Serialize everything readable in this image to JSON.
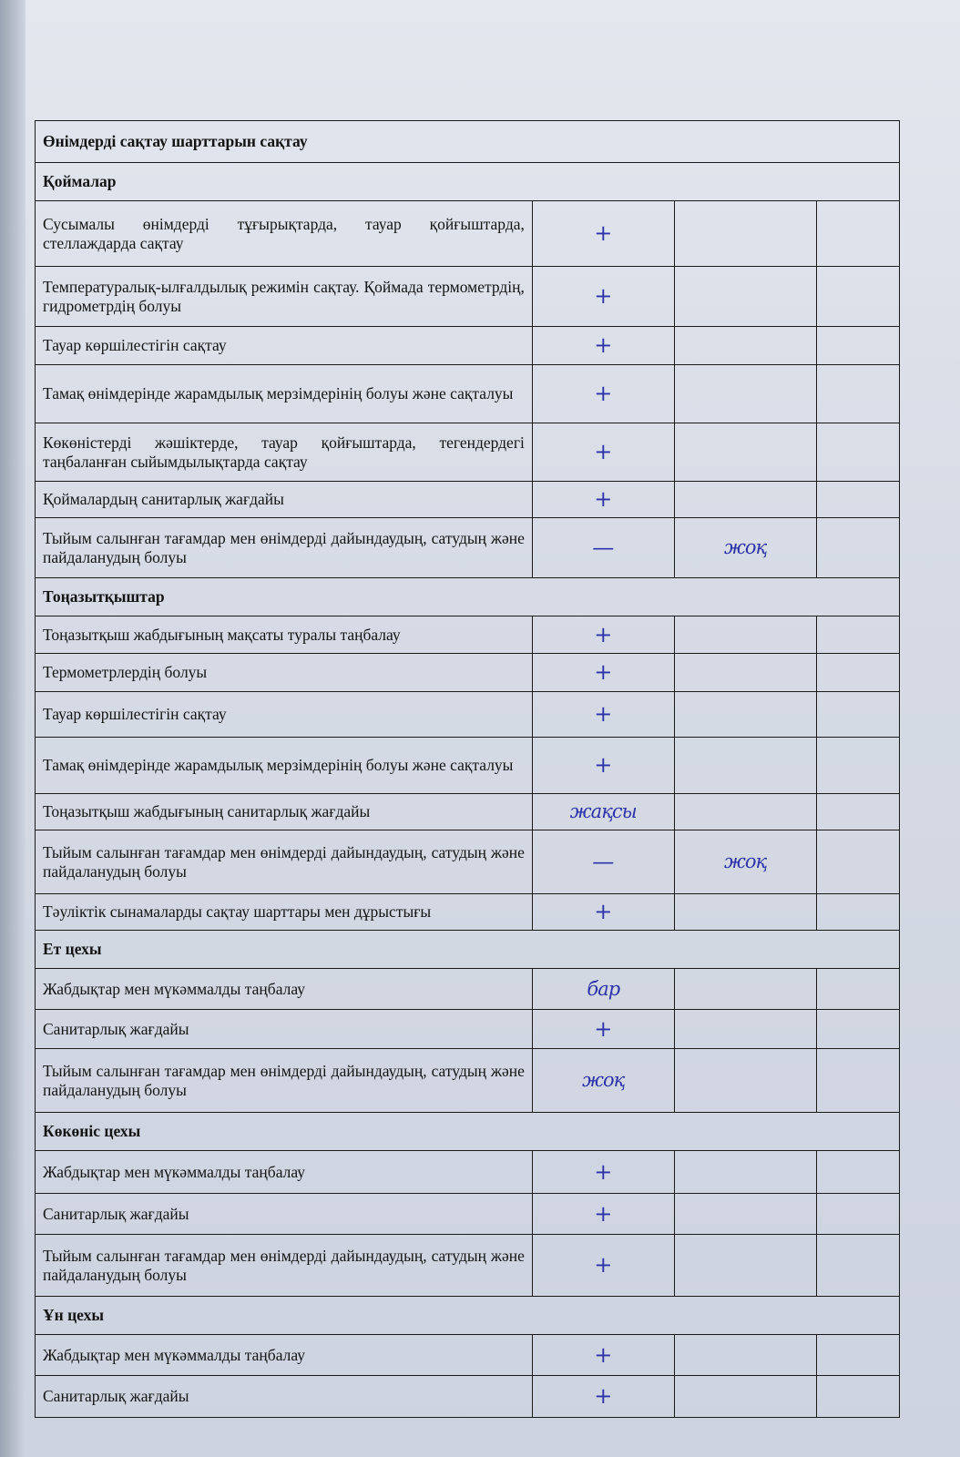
{
  "title": "Өнімдерді сақтау шарттарын сақтау",
  "sections": [
    {
      "heading": "Қоймалар",
      "rows": [
        {
          "text": "Сусымалы өнімдерді тұғырықтарда, тауар қойғыштарда, стеллаждарда сақтау",
          "mark": "+",
          "note": ""
        },
        {
          "text": "Температуралық-ылғалдылық режимін сақтау. Қоймада термометрдің, гидрометрдің болуы",
          "mark": "+",
          "note": ""
        },
        {
          "text": "Тауар көршілестігін сақтау",
          "mark": "+",
          "note": ""
        },
        {
          "text": "Тамақ өнімдерінде жарамдылық мерзімдерінің болуы және сақталуы",
          "mark": "+",
          "note": ""
        },
        {
          "text": "Көкөністерді жәшіктерде, тауар қойғыштарда, тегендердегі таңбаланған сыйымдылықтарда сақтау",
          "mark": "+",
          "note": ""
        },
        {
          "text": "Қоймалардың санитарлық жағдайы",
          "mark": "+",
          "note": ""
        },
        {
          "text": "Тыйым салынған тағамдар мен өнімдерді дайындаудың, сатудың және пайдаланудың болуы",
          "mark": "—",
          "note": "жоқ"
        }
      ]
    },
    {
      "heading": "Тоңазытқыштар",
      "rows": [
        {
          "text": "Тоңазытқыш жабдығының мақсаты туралы таңбалау",
          "mark": "+",
          "note": ""
        },
        {
          "text": "Термометрлердің болуы",
          "mark": "+",
          "note": ""
        },
        {
          "text": "Тауар көршілестігін сақтау",
          "mark": "+",
          "note": ""
        },
        {
          "text": "Тамақ өнімдерінде жарамдылық мерзімдерінің болуы және сақталуы",
          "mark": "+",
          "note": ""
        },
        {
          "text": "Тоңазытқыш жабдығының санитарлық жағдайы",
          "mark": "жақсы",
          "note": ""
        },
        {
          "text": "Тыйым салынған тағамдар мен өнімдерді дайындаудың, сатудың және пайдаланудың болуы",
          "mark": "—",
          "note": "жоқ"
        },
        {
          "text": "Тәуліктік сынамаларды сақтау шарттары мен дұрыстығы",
          "mark": "+",
          "note": ""
        }
      ]
    },
    {
      "heading": "Ет цехы",
      "rows": [
        {
          "text": "Жабдықтар мен мүкәммалды таңбалау",
          "mark": "бар",
          "note": ""
        },
        {
          "text": "Санитарлық жағдайы",
          "mark": "+",
          "note": ""
        },
        {
          "text": "Тыйым салынған тағамдар мен өнімдерді дайындаудың, сатудың және пайдаланудың болуы",
          "mark": "жоқ",
          "note": ""
        }
      ]
    },
    {
      "heading": "Көкөніс цехы",
      "rows": [
        {
          "text": "Жабдықтар мен мүкәммалды таңбалау",
          "mark": "+",
          "note": ""
        },
        {
          "text": "Санитарлық жағдайы",
          "mark": "+",
          "note": ""
        },
        {
          "text": "Тыйым салынған тағамдар мен өнімдерді дайындаудың, сатудың және пайдаланудың болуы",
          "mark": "+",
          "note": ""
        }
      ]
    },
    {
      "heading": "Ұн цехы",
      "rows": [
        {
          "text": "Жабдықтар мен мүкәммалды таңбалау",
          "mark": "+",
          "note": ""
        },
        {
          "text": "Санитарлық жағдайы",
          "mark": "+",
          "note": ""
        }
      ]
    }
  ],
  "ink_color": "#2d33a8"
}
